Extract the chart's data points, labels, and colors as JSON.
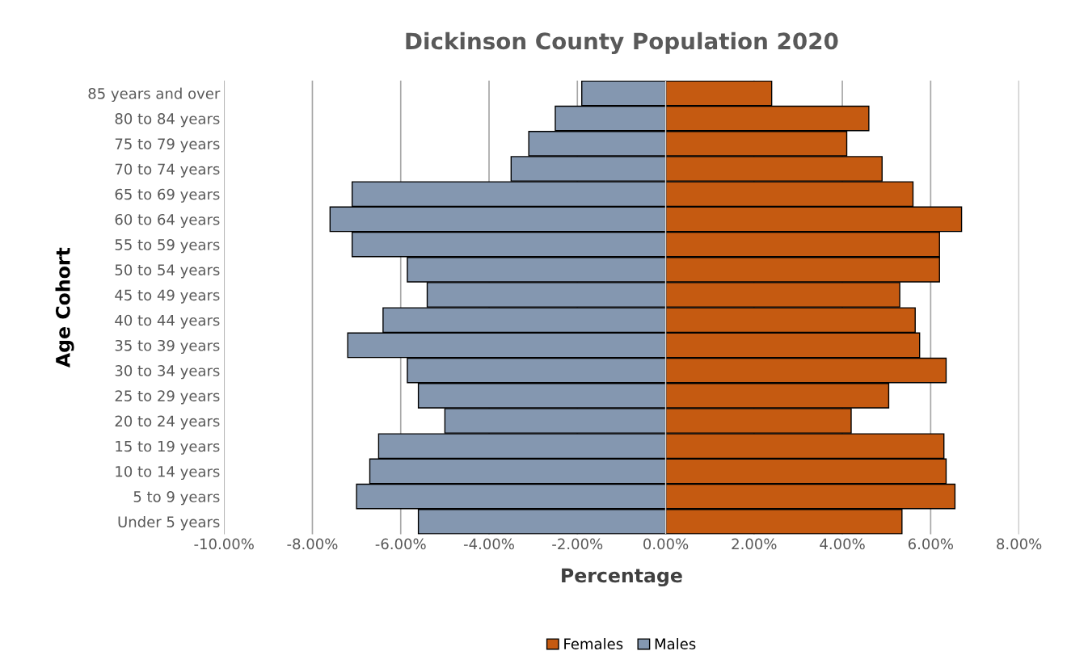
{
  "chart_data": {
    "type": "bar",
    "orientation": "horizontal",
    "stacked": true,
    "title": "Dickinson County Population 2020",
    "xlabel": "Percentage",
    "ylabel": "Age Cohort",
    "categories": [
      "85 years and over",
      "80 to 84 years",
      "75 to 79 years",
      "70 to 74 years",
      "65 to 69 years",
      "60 to 64 years",
      "55 to 59 years",
      "50 to 54 years",
      "45 to 49 years",
      "40 to 44 years",
      "35 to 39 years",
      "30 to 34 years",
      "25 to 29 years",
      "20 to 24 years",
      "15 to 19 years",
      "10 to 14 years",
      "5 to 9 years",
      "Under 5 years"
    ],
    "series": [
      {
        "name": "Females",
        "color": "#c55a11",
        "values": [
          2.4,
          4.6,
          4.1,
          4.9,
          5.6,
          6.7,
          6.2,
          6.2,
          5.3,
          5.65,
          5.75,
          6.35,
          5.05,
          4.2,
          6.3,
          6.35,
          6.55,
          5.35
        ]
      },
      {
        "name": "Males",
        "color": "#8497b0",
        "values": [
          -1.9,
          -2.5,
          -3.1,
          -3.5,
          -7.1,
          -7.6,
          -7.1,
          -5.85,
          -5.4,
          -6.4,
          -7.2,
          -5.85,
          -5.6,
          -5.0,
          -6.5,
          -6.7,
          -7.0,
          -5.6
        ]
      }
    ],
    "xlim": [
      -10,
      8
    ],
    "xticks": [
      {
        "value": -10,
        "label": "-10.00%"
      },
      {
        "value": -8,
        "label": "-8.00%"
      },
      {
        "value": -6,
        "label": "-6.00%"
      },
      {
        "value": -4,
        "label": "-4.00%"
      },
      {
        "value": -2,
        "label": "-2.00%"
      },
      {
        "value": 0,
        "label": "0.00%"
      },
      {
        "value": 2,
        "label": "2.00%"
      },
      {
        "value": 4,
        "label": "4.00%"
      },
      {
        "value": 6,
        "label": "6.00%"
      },
      {
        "value": 8,
        "label": "8.00%"
      }
    ],
    "grid": "x",
    "legend": "bottom"
  }
}
